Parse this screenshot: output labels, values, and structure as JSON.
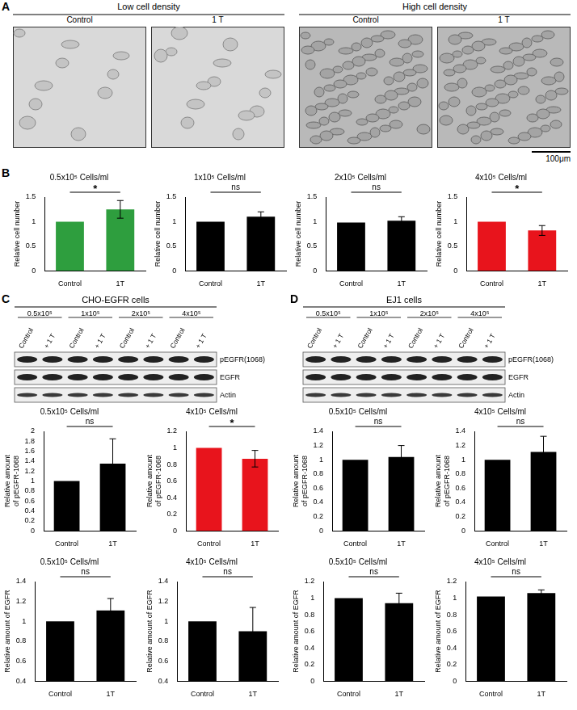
{
  "figure": {
    "A": {
      "letter": "A",
      "groups": [
        {
          "title": "Low cell density",
          "images": [
            "Control",
            "1 T"
          ]
        },
        {
          "title": "High cell density",
          "images": [
            "Control",
            "1 T"
          ]
        }
      ],
      "scale_bar": "100μm"
    },
    "B": {
      "letter": "B"
    },
    "C": {
      "letter": "C",
      "title": "CHO-EGFR cells",
      "densities": [
        "0.5x10⁵",
        "1x10⁵",
        "2x10⁵",
        "4x10⁵"
      ],
      "lanes": [
        "Control",
        "+ 1 T"
      ],
      "blots": [
        "pEGFR(1068)",
        "EGFR",
        "Actin"
      ]
    },
    "D": {
      "letter": "D",
      "title": "EJ1 cells",
      "densities": [
        "0.5x10⁵",
        "1x10⁵",
        "2x10⁵",
        "4x10⁵"
      ],
      "lanes": [
        "Control",
        "+ 1 T"
      ],
      "blots": [
        "pEGFR(1068)",
        "EGFR",
        "Actin"
      ]
    }
  },
  "chart_data": [
    {
      "type": "bar",
      "title": "0.5x10⁵ Cells/ml",
      "y_label": "Relative cell number",
      "categories": [
        "Control",
        "1T"
      ],
      "values": [
        1,
        1.25
      ],
      "errors": [
        null,
        0.18
      ],
      "color": "#2e9e3e",
      "ylim": [
        0,
        1.5
      ],
      "yticks": [
        0,
        0.5,
        1,
        1.5
      ],
      "grid": false,
      "annotation": "*"
    },
    {
      "type": "bar",
      "title": "1x10⁵ Cells/ml",
      "y_label": "Relative cell number",
      "categories": [
        "Control",
        "1T"
      ],
      "values": [
        1,
        1.1
      ],
      "errors": [
        null,
        0.1
      ],
      "color": "#000000",
      "ylim": [
        0,
        1.5
      ],
      "yticks": [
        0,
        0.5,
        1,
        1.5
      ],
      "grid": false,
      "annotation": "ns"
    },
    {
      "type": "bar",
      "title": "2x10⁵ Cells/ml",
      "y_label": "Relative cell number",
      "categories": [
        "Control",
        "1T"
      ],
      "values": [
        0.98,
        1.02
      ],
      "errors": [
        null,
        0.08
      ],
      "color": "#000000",
      "ylim": [
        0,
        1.5
      ],
      "yticks": [
        0,
        0.5,
        1,
        1.5
      ],
      "grid": false,
      "annotation": "ns"
    },
    {
      "type": "bar",
      "title": "4x10⁵ Cells/ml",
      "y_label": "Relative cell number",
      "categories": [
        "Control",
        "1T"
      ],
      "values": [
        1,
        0.82
      ],
      "errors": [
        null,
        0.1
      ],
      "color": "#e8141c",
      "ylim": [
        0,
        1.5
      ],
      "yticks": [
        0,
        0.5,
        1,
        1.5
      ],
      "grid": false,
      "annotation": "*"
    },
    {
      "type": "bar",
      "title": "0.5x10⁵ Cells/ml",
      "y_label": "Relative amount of pEGFR-1068",
      "categories": [
        "Control",
        "1T"
      ],
      "values": [
        1,
        1.35
      ],
      "errors": [
        null,
        0.5
      ],
      "color": "#000000",
      "ylim": [
        0,
        2
      ],
      "yticks": [
        0,
        0.2,
        0.4,
        0.6,
        0.8,
        1,
        1.2,
        1.4,
        1.6,
        1.8,
        2
      ],
      "grid": false,
      "annotation": "ns"
    },
    {
      "type": "bar",
      "title": "4x10⁵ Cells/ml",
      "y_label": "Relative amount of pEGFR-1068",
      "categories": [
        "Control",
        "1T"
      ],
      "values": [
        1,
        0.87
      ],
      "errors": [
        null,
        0.1
      ],
      "color": "#e8141c",
      "ylim": [
        0,
        1.2
      ],
      "yticks": [
        0,
        0.2,
        0.4,
        0.6,
        0.8,
        1,
        1.2
      ],
      "grid": false,
      "annotation": "*"
    },
    {
      "type": "bar",
      "title": "0.5x10⁵ Cells/ml",
      "y_label": "Relative amount of EGFR",
      "categories": [
        "Control",
        "1T"
      ],
      "values": [
        1,
        1.11
      ],
      "errors": [
        null,
        0.12
      ],
      "color": "#000000",
      "ylim": [
        0.4,
        1.4
      ],
      "yticks": [
        0.4,
        0.6,
        0.8,
        1,
        1.2,
        1.4
      ],
      "grid": false,
      "annotation": "ns"
    },
    {
      "type": "bar",
      "title": "4x10⁵ Cells/ml",
      "y_label": "Relative amount of EGFR",
      "categories": [
        "Control",
        "1T"
      ],
      "values": [
        1,
        0.9
      ],
      "errors": [
        null,
        0.24
      ],
      "color": "#000000",
      "ylim": [
        0.4,
        1.4
      ],
      "yticks": [
        0.4,
        0.6,
        0.8,
        1,
        1.2,
        1.4
      ],
      "grid": false,
      "annotation": "ns"
    },
    {
      "type": "bar",
      "title": "0.5x10⁵ Cells/ml",
      "y_label": "Relative amount of pEGFR-1068",
      "categories": [
        "Control",
        "1T"
      ],
      "values": [
        1,
        1.04
      ],
      "errors": [
        null,
        0.16
      ],
      "color": "#000000",
      "ylim": [
        0,
        1.4
      ],
      "yticks": [
        0,
        0.2,
        0.4,
        0.6,
        0.8,
        1,
        1.2,
        1.4
      ],
      "grid": false,
      "annotation": "ns"
    },
    {
      "type": "bar",
      "title": "4x10⁵ Cells/ml",
      "y_label": "Relative amount of pEGFR-1068",
      "categories": [
        "Control",
        "1T"
      ],
      "values": [
        1,
        1.11
      ],
      "errors": [
        null,
        0.22
      ],
      "color": "#000000",
      "ylim": [
        0,
        1.4
      ],
      "yticks": [
        0,
        0.2,
        0.4,
        0.6,
        0.8,
        1,
        1.2,
        1.4
      ],
      "grid": false,
      "annotation": "ns"
    },
    {
      "type": "bar",
      "title": "0.5x10⁵ Cells/ml",
      "y_label": "Relative amount of EGFR",
      "categories": [
        "Control",
        "1T"
      ],
      "values": [
        1,
        0.94
      ],
      "errors": [
        null,
        0.12
      ],
      "color": "#000000",
      "ylim": [
        0,
        1.2
      ],
      "yticks": [
        0,
        0.2,
        0.4,
        0.6,
        0.8,
        1,
        1.2
      ],
      "grid": false,
      "annotation": "ns"
    },
    {
      "type": "bar",
      "title": "4x10⁵ Cells/ml",
      "y_label": "Relative amount of EGFR",
      "categories": [
        "Control",
        "1T"
      ],
      "values": [
        1.02,
        1.06
      ],
      "errors": [
        null,
        0.04
      ],
      "color": "#000000",
      "ylim": [
        0,
        1.2
      ],
      "yticks": [
        0,
        0.2,
        0.4,
        0.6,
        0.8,
        1,
        1.2
      ],
      "grid": false,
      "annotation": "ns"
    }
  ]
}
